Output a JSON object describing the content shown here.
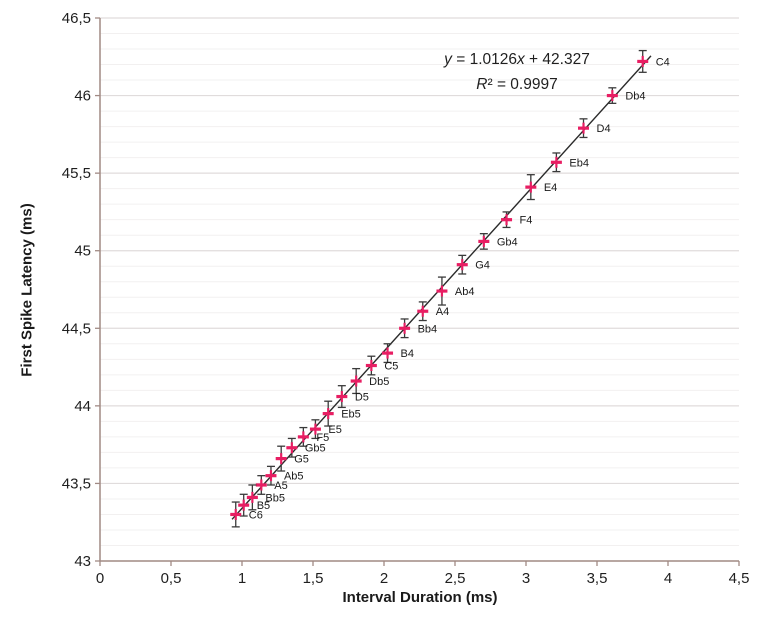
{
  "page": {
    "background": "#ffffff"
  },
  "colors": {
    "marker": "#e81e63",
    "error_bar": "#3a3a3a",
    "trend_line": "#2b2b2b",
    "axis": "#a18a84",
    "grid_major": "#e0dcdc",
    "grid_minor": "#f2f0f0",
    "tick_text": "#1f1f1f",
    "point_label_text": "#1a1a1a",
    "equation_text": "#1f1f1f"
  },
  "chart_data": {
    "type": "scatter",
    "title": "",
    "xlabel": "Interval Duration (ms)",
    "ylabel": "First Spike Latency (ms)",
    "xlim": [
      0,
      4.5
    ],
    "ylim": [
      43,
      46.5
    ],
    "grid": {
      "orientation": "horizontal",
      "minor_step": 0.1,
      "major_step": 0.5
    },
    "legend": "none",
    "x_ticks": [
      {
        "v": 0,
        "label": "0"
      },
      {
        "v": 0.5,
        "label": "0,5"
      },
      {
        "v": 1,
        "label": "1"
      },
      {
        "v": 1.5,
        "label": "1,5"
      },
      {
        "v": 2,
        "label": "2"
      },
      {
        "v": 2.5,
        "label": "2,5"
      },
      {
        "v": 3,
        "label": "3"
      },
      {
        "v": 3.5,
        "label": "3,5"
      },
      {
        "v": 4,
        "label": "4"
      },
      {
        "v": 4.5,
        "label": "4,5"
      }
    ],
    "y_ticks": [
      {
        "v": 43,
        "label": "43"
      },
      {
        "v": 43.5,
        "label": "43,5"
      },
      {
        "v": 44,
        "label": "44"
      },
      {
        "v": 44.5,
        "label": "44,5"
      },
      {
        "v": 45,
        "label": "45"
      },
      {
        "v": 45.5,
        "label": "45,5"
      },
      {
        "v": 46,
        "label": "46"
      },
      {
        "v": 46.5,
        "label": "46,5"
      }
    ],
    "trendline": {
      "slope": 1.0126,
      "intercept": 42.327,
      "r_squared": 0.9997,
      "x_start": 0.93,
      "x_end": 3.88,
      "equation_parts": [
        {
          "t": "y",
          "i": 1
        },
        {
          "t": " = 1.0126",
          "i": 0
        },
        {
          "t": "x",
          "i": 1
        },
        {
          "t": " + 42.327",
          "i": 0
        }
      ],
      "r2_parts": [
        {
          "t": "R",
          "i": 1
        },
        {
          "t": "² = 0.9997",
          "i": 0
        }
      ]
    },
    "points": [
      {
        "label": "C4",
        "x": 3.822,
        "y": 46.22,
        "error": 0.07
      },
      {
        "label": "Db4",
        "x": 3.608,
        "y": 46.0,
        "error": 0.05
      },
      {
        "label": "D4",
        "x": 3.405,
        "y": 45.79,
        "error": 0.06
      },
      {
        "label": "Eb4",
        "x": 3.214,
        "y": 45.57,
        "error": 0.06
      },
      {
        "label": "E4",
        "x": 3.034,
        "y": 45.41,
        "error": 0.08
      },
      {
        "label": "F4",
        "x": 2.863,
        "y": 45.2,
        "error": 0.05
      },
      {
        "label": "Gb4",
        "x": 2.703,
        "y": 45.06,
        "error": 0.05
      },
      {
        "label": "G4",
        "x": 2.551,
        "y": 44.91,
        "error": 0.06
      },
      {
        "label": "Ab4",
        "x": 2.408,
        "y": 44.74,
        "error": 0.09
      },
      {
        "label": "A4",
        "x": 2.273,
        "y": 44.61,
        "error": 0.06
      },
      {
        "label": "Bb4",
        "x": 2.145,
        "y": 44.5,
        "error": 0.06
      },
      {
        "label": "B4",
        "x": 2.025,
        "y": 44.34,
        "error": 0.06
      },
      {
        "label": "C5",
        "x": 1.911,
        "y": 44.26,
        "error": 0.06
      },
      {
        "label": "Db5",
        "x": 1.804,
        "y": 44.16,
        "error": 0.08
      },
      {
        "label": "D5",
        "x": 1.703,
        "y": 44.06,
        "error": 0.07
      },
      {
        "label": "Eb5",
        "x": 1.607,
        "y": 43.95,
        "error": 0.08
      },
      {
        "label": "E5",
        "x": 1.517,
        "y": 43.85,
        "error": 0.06
      },
      {
        "label": "F5",
        "x": 1.432,
        "y": 43.8,
        "error": 0.06
      },
      {
        "label": "Gb5",
        "x": 1.351,
        "y": 43.73,
        "error": 0.06
      },
      {
        "label": "G5",
        "x": 1.276,
        "y": 43.66,
        "error": 0.08
      },
      {
        "label": "Ab5",
        "x": 1.204,
        "y": 43.55,
        "error": 0.06
      },
      {
        "label": "A5",
        "x": 1.136,
        "y": 43.49,
        "error": 0.06
      },
      {
        "label": "Bb5",
        "x": 1.073,
        "y": 43.41,
        "error": 0.08
      },
      {
        "label": "B5",
        "x": 1.012,
        "y": 43.36,
        "error": 0.07
      },
      {
        "label": "C6",
        "x": 0.956,
        "y": 43.3,
        "error": 0.08
      }
    ]
  }
}
